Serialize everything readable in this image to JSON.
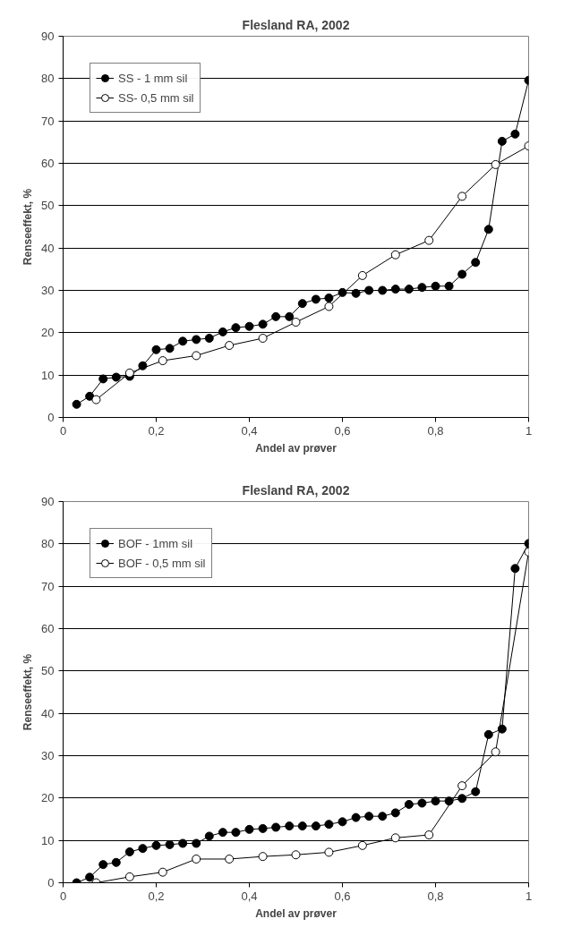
{
  "chart_data": [
    {
      "type": "line",
      "title": "Flesland RA, 2002",
      "xlabel": "Andel av prøver",
      "ylabel": "Renseeffekt, %",
      "xlim": [
        0,
        1
      ],
      "ylim": [
        0,
        90
      ],
      "xticks": [
        0,
        {
          "value": 0.2,
          "label": "0,2"
        },
        {
          "value": 0.4,
          "label": "0,4"
        },
        {
          "value": 0.6,
          "label": "0,6"
        },
        {
          "value": 0.8,
          "label": "0,8"
        },
        1
      ],
      "yticks": [
        0,
        10,
        20,
        30,
        40,
        50,
        60,
        70,
        80,
        90
      ],
      "grid": "y",
      "legend": "top left",
      "marker": "circle",
      "line_style": "solid",
      "series": [
        {
          "name": "SS - 1 mm sil",
          "color": "#000000",
          "x": [
            0.029,
            0.057,
            0.086,
            0.114,
            0.143,
            0.171,
            0.2,
            0.229,
            0.257,
            0.286,
            0.314,
            0.343,
            0.371,
            0.4,
            0.429,
            0.457,
            0.486,
            0.514,
            0.543,
            0.571,
            0.6,
            0.629,
            0.657,
            0.686,
            0.714,
            0.743,
            0.771,
            0.8,
            0.829,
            0.857,
            0.886,
            0.914,
            0.943,
            0.971,
            1
          ],
          "values": [
            3.1,
            5,
            9.1,
            9.5,
            9.7,
            12.2,
            16,
            16.3,
            18,
            18.4,
            18.7,
            20.2,
            21.2,
            21.5,
            22,
            23.8,
            23.8,
            26.9,
            27.9,
            28.2,
            29.5,
            29.3,
            30,
            30,
            30.3,
            30.3,
            30.7,
            31,
            31,
            33.8,
            36.6,
            44.4,
            65.2,
            66.9,
            79.6
          ]
        },
        {
          "name": "SS- 0,5 mm sil",
          "color": "#ffffff",
          "x": [
            0.071,
            0.143,
            0.214,
            0.286,
            0.357,
            0.429,
            0.5,
            0.571,
            0.643,
            0.714,
            0.786,
            0.857,
            0.929,
            1
          ],
          "values": [
            4.2,
            10.5,
            13.4,
            14.6,
            17,
            18.7,
            22.5,
            26.2,
            33.5,
            38.4,
            41.8,
            52.2,
            59.7,
            64.1
          ]
        }
      ]
    },
    {
      "type": "line",
      "title": "Flesland RA, 2002",
      "xlabel": "Andel av prøver",
      "ylabel": "Renseeffekt, %",
      "xlim": [
        0,
        1
      ],
      "ylim": [
        0,
        90
      ],
      "xticks": [
        0,
        {
          "value": 0.2,
          "label": "0,2"
        },
        {
          "value": 0.4,
          "label": "0,4"
        },
        {
          "value": 0.6,
          "label": "0,6"
        },
        {
          "value": 0.8,
          "label": "0,8"
        },
        1
      ],
      "yticks": [
        0,
        10,
        20,
        30,
        40,
        50,
        60,
        70,
        80,
        90
      ],
      "grid": "y",
      "legend": "top left",
      "marker": "circle",
      "line_style": "solid",
      "series": [
        {
          "name": "BOF - 1mm sil",
          "color": "#000000",
          "x": [
            0.029,
            0.057,
            0.086,
            0.114,
            0.143,
            0.171,
            0.2,
            0.229,
            0.257,
            0.286,
            0.314,
            0.343,
            0.371,
            0.4,
            0.429,
            0.457,
            0.486,
            0.514,
            0.543,
            0.571,
            0.6,
            0.629,
            0.657,
            0.686,
            0.714,
            0.743,
            0.771,
            0.8,
            0.829,
            0.857,
            0.886,
            0.914,
            0.943,
            0.971,
            1
          ],
          "values": [
            0,
            1.3,
            4.3,
            4.8,
            7.3,
            8.1,
            8.8,
            9,
            9.3,
            9.3,
            11,
            11.9,
            11.9,
            12.6,
            12.8,
            13.1,
            13.4,
            13.4,
            13.4,
            13.8,
            14.4,
            15.4,
            15.7,
            15.7,
            16.5,
            18.5,
            18.8,
            19.3,
            19.3,
            19.9,
            21.5,
            35,
            36.3,
            74.2,
            80.1
          ]
        },
        {
          "name": "BOF - 0,5 mm sil",
          "color": "#ffffff",
          "x": [
            0.071,
            0.143,
            0.214,
            0.286,
            0.357,
            0.429,
            0.5,
            0.571,
            0.643,
            0.714,
            0.786,
            0.857,
            0.929,
            1
          ],
          "values": [
            0,
            1.4,
            2.5,
            5.6,
            5.6,
            6.2,
            6.6,
            7.2,
            8.8,
            10.6,
            11.3,
            22.9,
            30.9,
            78.1
          ]
        }
      ]
    }
  ]
}
